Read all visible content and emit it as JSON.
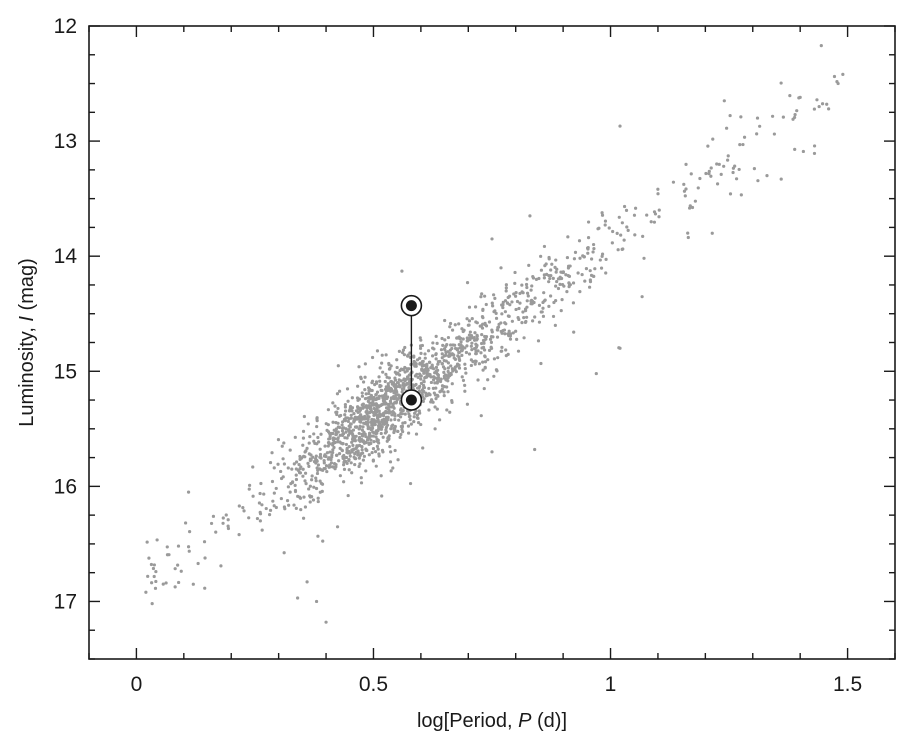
{
  "chart_data": {
    "type": "scatter",
    "title": "",
    "xlabel_parts": [
      "log[Period, ",
      "P",
      " (d)]"
    ],
    "ylabel_parts": [
      "Luminosity, ",
      "I",
      " (mag)"
    ],
    "xlim": [
      -0.1,
      1.6
    ],
    "ylim": [
      17.5,
      12
    ],
    "y_inverted": true,
    "x_ticks": [
      0,
      0.5,
      1,
      1.5
    ],
    "x_tick_labels": [
      "0",
      "0.5",
      "1",
      "1.5"
    ],
    "y_ticks": [
      12,
      13,
      14,
      15,
      16,
      17
    ],
    "y_tick_labels": [
      "12",
      "13",
      "14",
      "15",
      "16",
      "17"
    ],
    "grid": false,
    "point_color": "#9a9a9a",
    "highlight_color": "#1a1a1a",
    "series": [
      {
        "kind": "cloud",
        "count": 1700,
        "relation": {
          "slope": -2.98,
          "intercept_at_zero": 16.86
        },
        "x_range": [
          0.02,
          1.48
        ],
        "scatter_mag": 0.17,
        "outliers": [
          {
            "x": 0.02,
            "y": 16.92
          },
          {
            "x": 0.11,
            "y": 16.05
          },
          {
            "x": 0.12,
            "y": 16.85
          },
          {
            "x": 0.34,
            "y": 16.97
          },
          {
            "x": 0.36,
            "y": 16.83
          },
          {
            "x": 0.38,
            "y": 17.0
          },
          {
            "x": 0.4,
            "y": 17.18
          },
          {
            "x": 0.56,
            "y": 14.13
          },
          {
            "x": 0.63,
            "y": 15.5
          },
          {
            "x": 0.75,
            "y": 15.7
          },
          {
            "x": 0.83,
            "y": 13.65
          },
          {
            "x": 0.84,
            "y": 15.68
          },
          {
            "x": 0.75,
            "y": 13.85
          },
          {
            "x": 0.97,
            "y": 15.02
          },
          {
            "x": 1.02,
            "y": 14.8
          },
          {
            "x": 1.02,
            "y": 12.87
          },
          {
            "x": 1.24,
            "y": 12.65
          },
          {
            "x": 1.4,
            "y": 12.62
          },
          {
            "x": 1.44,
            "y": 12.7
          },
          {
            "x": 1.46,
            "y": 12.72
          },
          {
            "x": 1.49,
            "y": 12.42
          },
          {
            "x": 1.48,
            "y": 12.5
          },
          {
            "x": 1.31,
            "y": 12.8
          },
          {
            "x": 1.33,
            "y": 13.3
          },
          {
            "x": 1.36,
            "y": 13.33
          }
        ]
      },
      {
        "kind": "highlighted",
        "points": [
          {
            "x": 0.58,
            "y": 14.43
          },
          {
            "x": 0.58,
            "y": 15.25
          }
        ],
        "connector": true
      }
    ]
  }
}
